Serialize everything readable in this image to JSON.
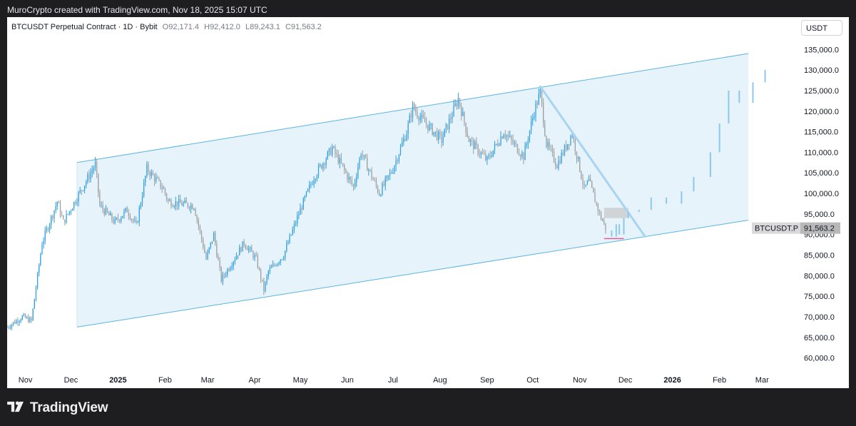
{
  "caption": "MuroCrypto created with TradingView.com, Nov 18, 2025 15:07 UTC",
  "symbol": {
    "name": "BTCUSDT Perpetual Contract · 1D · Bybit",
    "o_label": "O",
    "o": "92,171.4",
    "h_label": "H",
    "h": "92,412.0",
    "l_label": "L",
    "l": "89,243.1",
    "c_label": "C",
    "c": "91,563.2"
  },
  "currency": "USDT",
  "brand": "TradingView",
  "colors": {
    "up": "#2f9fe0",
    "down": "#9e9e9e",
    "channel": "#5ab4e0",
    "channel_fill": "#e6f3fb",
    "projection": "#8cc8ee",
    "trend": "#a8d4f0",
    "pink": "#e05a9a"
  },
  "chart_data": {
    "type": "candlestick",
    "y_axis": {
      "min": 57500,
      "max": 138000,
      "ticks": [
        135000,
        130000,
        125000,
        120000,
        115000,
        110000,
        105000,
        100000,
        95000,
        90000,
        85000,
        80000,
        75000,
        70000,
        65000,
        60000
      ],
      "tick_labels": [
        "135,000.0",
        "130,000.0",
        "125,000.0",
        "120,000.0",
        "115,000.0",
        "110,000.0",
        "105,000.0",
        "100,000.0",
        "95,000.0",
        "90,000.0",
        "85,000.0",
        "80,000.0",
        "75,000.0",
        "70,000.0",
        "65,000.0",
        "60,000.0"
      ]
    },
    "x_axis": {
      "start": "2024-10-20",
      "end": "2026-03-22",
      "ticks": [
        {
          "date": "2024-11-01",
          "label": "Nov",
          "bold": false
        },
        {
          "date": "2024-12-01",
          "label": "Dec",
          "bold": false
        },
        {
          "date": "2025-01-01",
          "label": "2025",
          "bold": true
        },
        {
          "date": "2025-02-01",
          "label": "Feb",
          "bold": false
        },
        {
          "date": "2025-03-01",
          "label": "Mar",
          "bold": false
        },
        {
          "date": "2025-04-01",
          "label": "Apr",
          "bold": false
        },
        {
          "date": "2025-05-01",
          "label": "May",
          "bold": false
        },
        {
          "date": "2025-06-01",
          "label": "Jun",
          "bold": false
        },
        {
          "date": "2025-07-01",
          "label": "Jul",
          "bold": false
        },
        {
          "date": "2025-08-01",
          "label": "Aug",
          "bold": false
        },
        {
          "date": "2025-09-01",
          "label": "Sep",
          "bold": false
        },
        {
          "date": "2025-10-01",
          "label": "Oct",
          "bold": false
        },
        {
          "date": "2025-11-01",
          "label": "Nov",
          "bold": false
        },
        {
          "date": "2025-12-01",
          "label": "Dec",
          "bold": false
        },
        {
          "date": "2026-01-01",
          "label": "2026",
          "bold": true
        },
        {
          "date": "2026-02-01",
          "label": "Feb",
          "bold": false
        },
        {
          "date": "2026-03-01",
          "label": "Mar",
          "bold": false
        }
      ]
    },
    "price_path": [
      {
        "date": "2024-10-20",
        "price": 67500
      },
      {
        "date": "2024-10-30",
        "price": 70000
      },
      {
        "date": "2024-11-05",
        "price": 69000
      },
      {
        "date": "2024-11-12",
        "price": 88000
      },
      {
        "date": "2024-11-22",
        "price": 98000
      },
      {
        "date": "2024-11-26",
        "price": 93000
      },
      {
        "date": "2024-12-05",
        "price": 99000
      },
      {
        "date": "2024-12-17",
        "price": 107000
      },
      {
        "date": "2024-12-20",
        "price": 97000
      },
      {
        "date": "2024-12-30",
        "price": 93000
      },
      {
        "date": "2025-01-07",
        "price": 96000
      },
      {
        "date": "2025-01-13",
        "price": 92000
      },
      {
        "date": "2025-01-20",
        "price": 106000
      },
      {
        "date": "2025-01-31",
        "price": 101000
      },
      {
        "date": "2025-02-03",
        "price": 98000
      },
      {
        "date": "2025-02-20",
        "price": 97000
      },
      {
        "date": "2025-02-28",
        "price": 84000
      },
      {
        "date": "2025-03-05",
        "price": 90000
      },
      {
        "date": "2025-03-10",
        "price": 79000
      },
      {
        "date": "2025-03-25",
        "price": 88000
      },
      {
        "date": "2025-04-02",
        "price": 84000
      },
      {
        "date": "2025-04-07",
        "price": 76500
      },
      {
        "date": "2025-04-10",
        "price": 81000
      },
      {
        "date": "2025-04-20",
        "price": 85000
      },
      {
        "date": "2025-05-01",
        "price": 96000
      },
      {
        "date": "2025-05-10",
        "price": 104000
      },
      {
        "date": "2025-05-22",
        "price": 111000
      },
      {
        "date": "2025-06-05",
        "price": 101500
      },
      {
        "date": "2025-06-10",
        "price": 110000
      },
      {
        "date": "2025-06-22",
        "price": 100000
      },
      {
        "date": "2025-07-01",
        "price": 106000
      },
      {
        "date": "2025-07-10",
        "price": 115000
      },
      {
        "date": "2025-07-14",
        "price": 121000
      },
      {
        "date": "2025-07-20",
        "price": 118000
      },
      {
        "date": "2025-08-02",
        "price": 113000
      },
      {
        "date": "2025-08-13",
        "price": 123000
      },
      {
        "date": "2025-08-20",
        "price": 113000
      },
      {
        "date": "2025-09-01",
        "price": 108000
      },
      {
        "date": "2025-09-12",
        "price": 115000
      },
      {
        "date": "2025-09-25",
        "price": 109000
      },
      {
        "date": "2025-10-02",
        "price": 120000
      },
      {
        "date": "2025-10-06",
        "price": 124500
      },
      {
        "date": "2025-10-10",
        "price": 112000
      },
      {
        "date": "2025-10-17",
        "price": 107000
      },
      {
        "date": "2025-10-27",
        "price": 114500
      },
      {
        "date": "2025-11-04",
        "price": 101000
      },
      {
        "date": "2025-11-07",
        "price": 103000
      },
      {
        "date": "2025-11-14",
        "price": 95000
      },
      {
        "date": "2025-11-18",
        "price": 91563
      }
    ],
    "channel": {
      "upper": [
        {
          "date": "2024-12-05",
          "price": 107500
        },
        {
          "date": "2026-02-20",
          "price": 134000
        }
      ],
      "lower": [
        {
          "date": "2024-12-05",
          "price": 67500
        },
        {
          "date": "2026-02-20",
          "price": 93500
        }
      ]
    },
    "trendline": [
      {
        "date": "2025-10-06",
        "price": 126000
      },
      {
        "date": "2025-12-14",
        "price": 89500
      }
    ],
    "support_line": [
      {
        "date": "2025-11-17",
        "price": 89000
      },
      {
        "date": "2025-11-30",
        "price": 89000
      }
    ],
    "resistance_zone": {
      "date_start": "2025-11-17",
      "date_end": "2025-12-03",
      "low": 94000,
      "high": 96500
    },
    "projection": [
      {
        "date": "2025-11-18",
        "price": 91000
      },
      {
        "date": "2025-11-22",
        "price": 89500
      },
      {
        "date": "2025-11-25",
        "price": 92500
      },
      {
        "date": "2025-11-27",
        "price": 90000
      },
      {
        "date": "2025-11-30",
        "price": 94000
      },
      {
        "date": "2025-12-03",
        "price": 95500
      },
      {
        "date": "2025-12-10",
        "price": 96000
      },
      {
        "date": "2025-12-18",
        "price": 99000
      },
      {
        "date": "2025-12-28",
        "price": 97500
      },
      {
        "date": "2026-01-07",
        "price": 100500
      },
      {
        "date": "2026-01-15",
        "price": 104000
      },
      {
        "date": "2026-01-26",
        "price": 110000
      },
      {
        "date": "2026-02-01",
        "price": 117000
      },
      {
        "date": "2026-02-07",
        "price": 125000
      },
      {
        "date": "2026-02-14",
        "price": 122000
      },
      {
        "date": "2026-02-23",
        "price": 127000
      },
      {
        "date": "2026-03-03",
        "price": 130000
      }
    ],
    "price_tag": {
      "label": "BTCUSDT.P",
      "value": "91,563.2",
      "price": 91563.2
    }
  }
}
